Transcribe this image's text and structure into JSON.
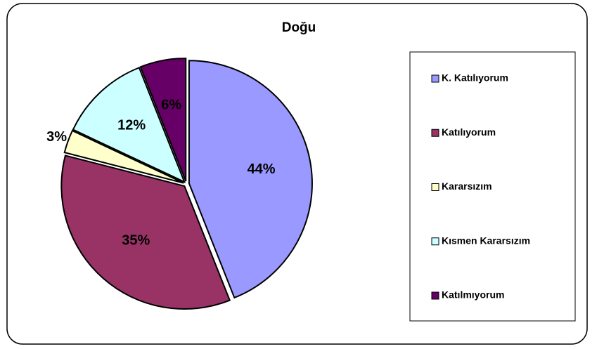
{
  "chart_data": {
    "type": "pie",
    "title": "Doğu",
    "categories": [
      "K. Katılıyorum",
      "Katılıyorum",
      "Kararsızım",
      "Kısmen Kararsızım",
      "Katılmıyorum"
    ],
    "values": [
      44,
      35,
      3,
      12,
      6
    ],
    "value_labels": [
      "44%",
      "35%",
      "3%",
      "12%",
      "6%"
    ],
    "colors": [
      "#9999ff",
      "#993366",
      "#ffffcc",
      "#ccffff",
      "#660066"
    ],
    "legend": "right"
  }
}
